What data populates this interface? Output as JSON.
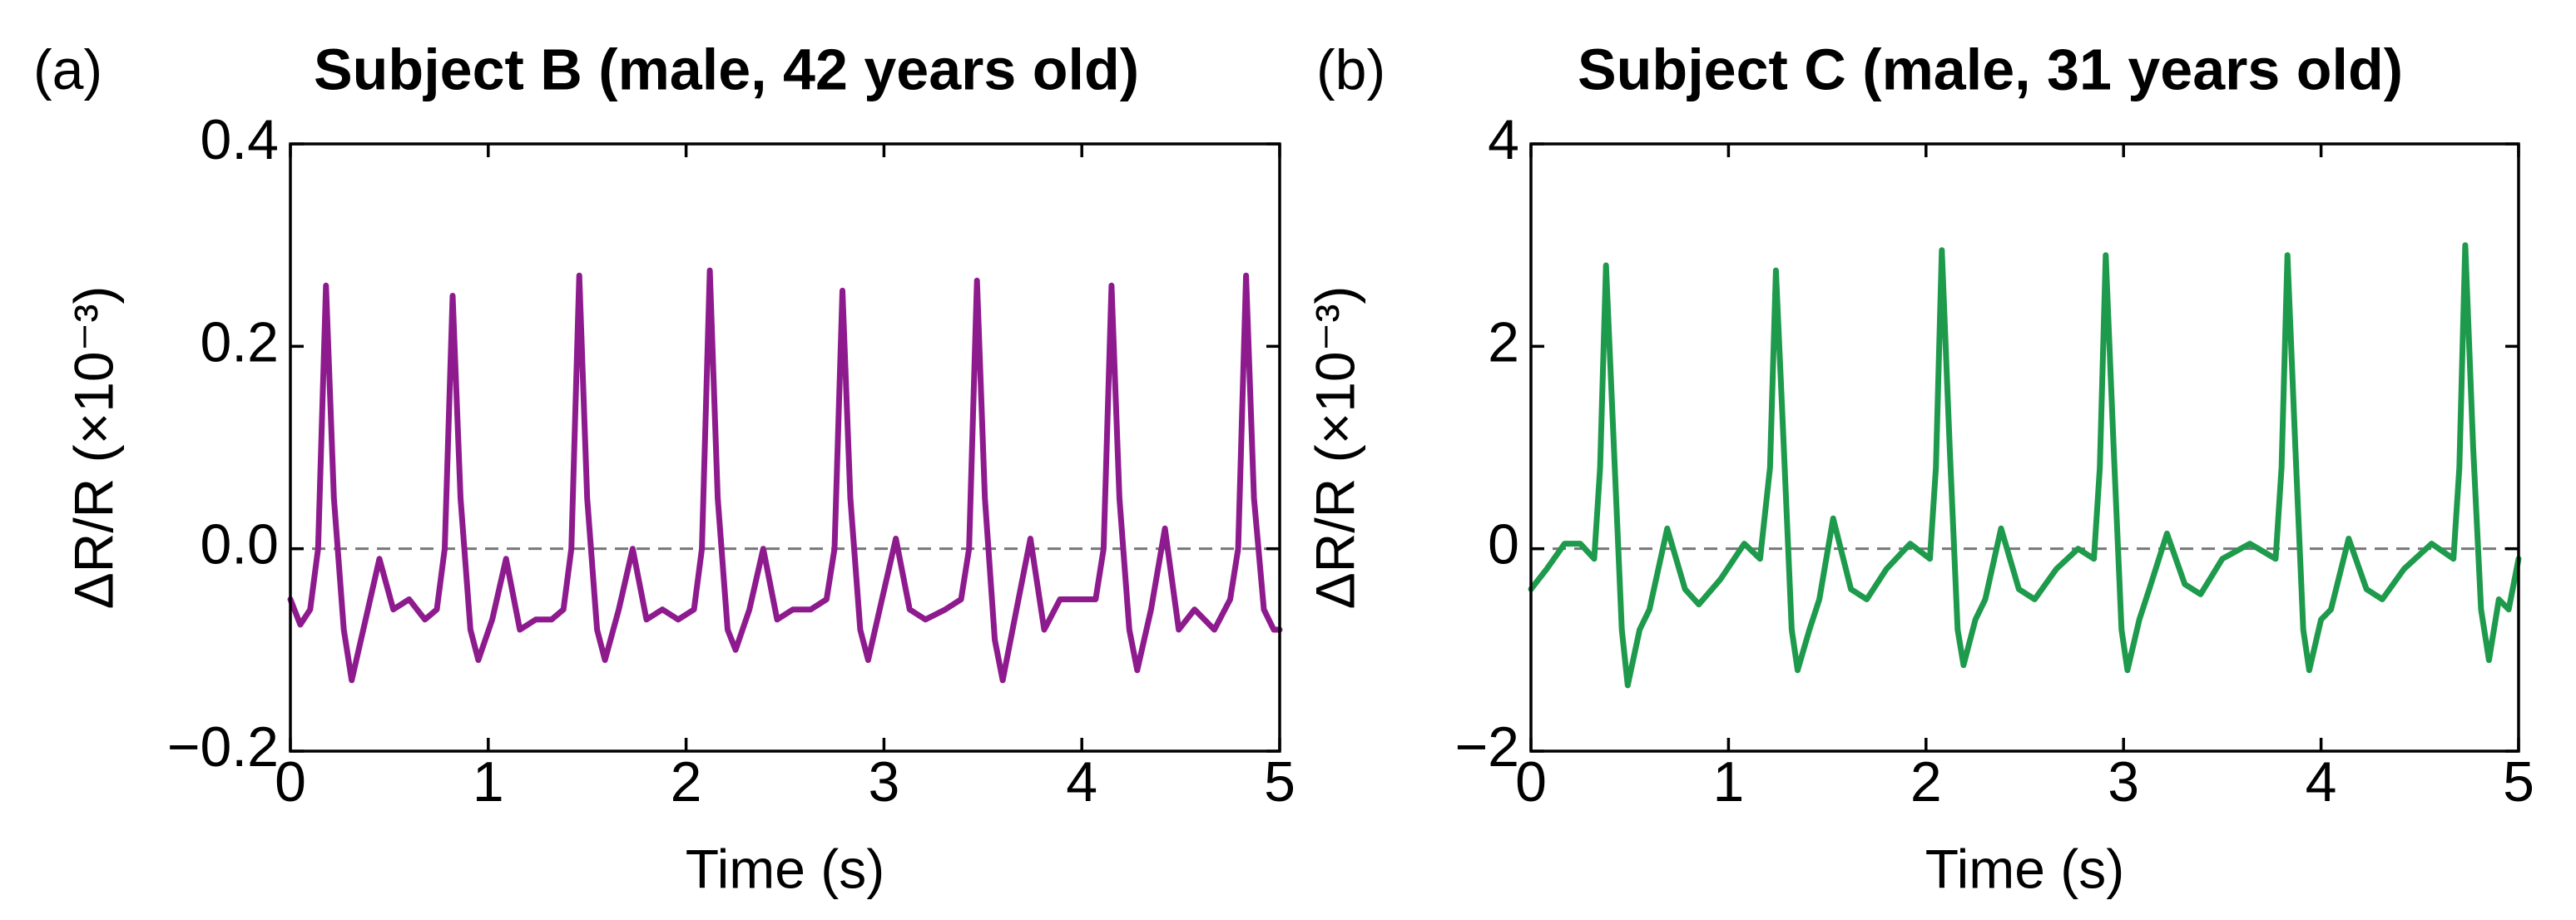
{
  "chart_data": [
    {
      "type": "line",
      "panel": "(a)",
      "title": "Subject B (male, 42 years old)",
      "xlabel": "Time (s)",
      "ylabel": "ΔR/R (×10⁻³)",
      "xlim": [
        0,
        5
      ],
      "xticks": [
        0,
        1,
        2,
        3,
        4,
        5
      ],
      "ylim": [
        -0.2,
        0.4
      ],
      "yticks": [
        {
          "value": -0.2,
          "label": "−0.2"
        },
        {
          "value": 0,
          "label": "0.0"
        },
        0.2,
        0.4
      ],
      "hline": 0,
      "x": [
        0,
        0.05,
        0.1,
        0.14,
        0.18,
        0.22,
        0.27,
        0.31,
        0.38,
        0.45,
        0.52,
        0.6,
        0.68,
        0.74,
        0.78,
        0.82,
        0.86,
        0.91,
        0.95,
        1.02,
        1.09,
        1.16,
        1.24,
        1.32,
        1.38,
        1.42,
        1.46,
        1.5,
        1.55,
        1.59,
        1.66,
        1.73,
        1.8,
        1.88,
        1.96,
        2.04,
        2.08,
        2.12,
        2.16,
        2.21,
        2.25,
        2.32,
        2.39,
        2.46,
        2.54,
        2.63,
        2.71,
        2.75,
        2.79,
        2.83,
        2.88,
        2.92,
        2.99,
        3.06,
        3.13,
        3.21,
        3.31,
        3.39,
        3.43,
        3.47,
        3.51,
        3.56,
        3.6,
        3.67,
        3.74,
        3.81,
        3.89,
        3.99,
        4.07,
        4.11,
        4.15,
        4.19,
        4.24,
        4.28,
        4.35,
        4.42,
        4.49,
        4.57,
        4.67,
        4.75,
        4.79,
        4.83,
        4.87,
        4.92,
        4.97,
        5.0
      ],
      "series": [
        {
          "color": "#8e1b8e",
          "values": [
            -0.05,
            -0.075,
            -0.06,
            0.0,
            0.26,
            0.05,
            -0.08,
            -0.13,
            -0.07,
            -0.01,
            -0.06,
            -0.05,
            -0.07,
            -0.06,
            0.0,
            0.25,
            0.05,
            -0.08,
            -0.11,
            -0.07,
            -0.01,
            -0.08,
            -0.07,
            -0.07,
            -0.06,
            0.0,
            0.27,
            0.05,
            -0.08,
            -0.11,
            -0.06,
            0.0,
            -0.07,
            -0.06,
            -0.07,
            -0.06,
            0.0,
            0.275,
            0.05,
            -0.08,
            -0.1,
            -0.06,
            0.0,
            -0.07,
            -0.06,
            -0.06,
            -0.05,
            0.0,
            0.255,
            0.05,
            -0.08,
            -0.11,
            -0.05,
            0.01,
            -0.06,
            -0.07,
            -0.06,
            -0.05,
            0.0,
            0.265,
            0.05,
            -0.09,
            -0.13,
            -0.06,
            0.01,
            -0.08,
            -0.05,
            -0.05,
            -0.05,
            0.0,
            0.26,
            0.05,
            -0.08,
            -0.12,
            -0.06,
            0.02,
            -0.08,
            -0.06,
            -0.08,
            -0.05,
            0.0,
            0.27,
            0.05,
            -0.06,
            -0.08,
            -0.08
          ]
        }
      ]
    },
    {
      "type": "line",
      "panel": "(b)",
      "title": "Subject C (male, 31 years old)",
      "xlabel": "Time (s)",
      "ylabel": "ΔR/R (×10⁻³)",
      "xlim": [
        0,
        5
      ],
      "xticks": [
        0,
        1,
        2,
        3,
        4,
        5
      ],
      "ylim": [
        -2,
        4
      ],
      "yticks": [
        {
          "value": -2,
          "label": "−2"
        },
        0,
        2,
        4
      ],
      "hline": 0,
      "x": [
        0,
        0.08,
        0.17,
        0.25,
        0.32,
        0.35,
        0.38,
        0.42,
        0.46,
        0.49,
        0.55,
        0.6,
        0.69,
        0.78,
        0.85,
        0.96,
        1.08,
        1.16,
        1.21,
        1.24,
        1.28,
        1.32,
        1.35,
        1.41,
        1.46,
        1.53,
        1.62,
        1.7,
        1.8,
        1.92,
        2.02,
        2.05,
        2.08,
        2.12,
        2.16,
        2.19,
        2.25,
        2.3,
        2.38,
        2.47,
        2.55,
        2.66,
        2.77,
        2.85,
        2.88,
        2.91,
        2.95,
        2.99,
        3.02,
        3.08,
        3.13,
        3.22,
        3.31,
        3.39,
        3.5,
        3.64,
        3.77,
        3.8,
        3.83,
        3.87,
        3.91,
        3.94,
        4.0,
        4.05,
        4.14,
        4.23,
        4.31,
        4.42,
        4.56,
        4.67,
        4.7,
        4.73,
        4.77,
        4.81,
        4.85,
        4.9,
        4.95,
        5.0
      ],
      "series": [
        {
          "color": "#1e9a4c",
          "values": [
            -0.4,
            -0.2,
            0.05,
            0.05,
            -0.1,
            0.8,
            2.8,
            1.0,
            -0.8,
            -1.35,
            -0.8,
            -0.6,
            0.2,
            -0.4,
            -0.55,
            -0.3,
            0.05,
            -0.1,
            0.8,
            2.75,
            1.0,
            -0.8,
            -1.2,
            -0.8,
            -0.5,
            0.3,
            -0.4,
            -0.5,
            -0.2,
            0.05,
            -0.1,
            0.8,
            2.95,
            1.0,
            -0.8,
            -1.15,
            -0.7,
            -0.5,
            0.2,
            -0.4,
            -0.5,
            -0.2,
            0.0,
            -0.1,
            0.8,
            2.9,
            1.0,
            -0.8,
            -1.2,
            -0.7,
            -0.4,
            0.15,
            -0.35,
            -0.45,
            -0.1,
            0.05,
            -0.1,
            0.8,
            2.9,
            1.0,
            -0.8,
            -1.2,
            -0.7,
            -0.6,
            0.1,
            -0.4,
            -0.5,
            -0.2,
            0.05,
            -0.1,
            0.8,
            3.0,
            1.0,
            -0.6,
            -1.1,
            -0.5,
            -0.6,
            -0.1
          ]
        }
      ]
    }
  ]
}
